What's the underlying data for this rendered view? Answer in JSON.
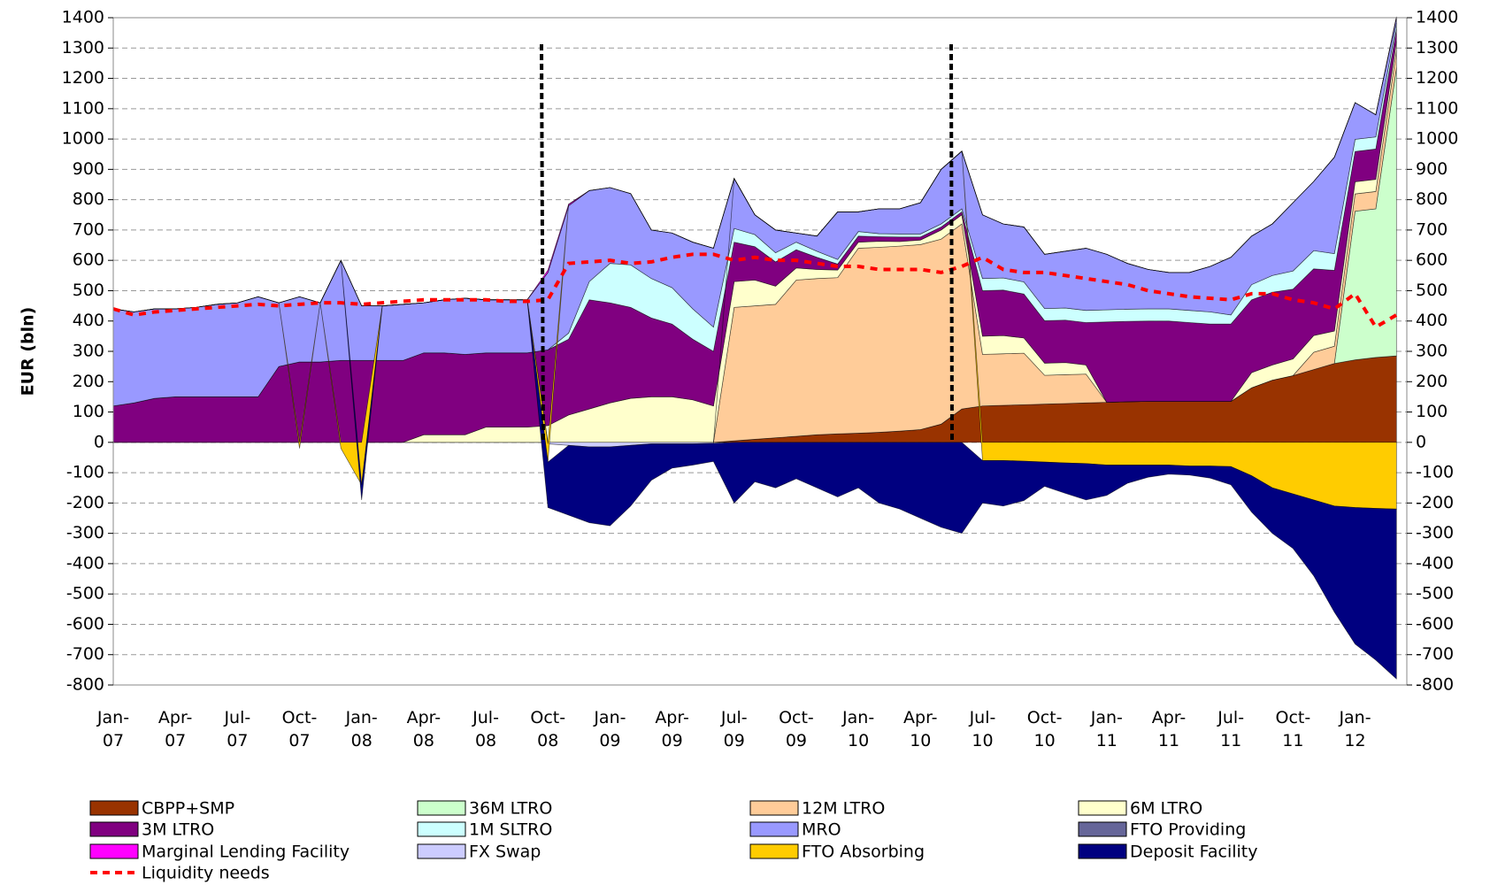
{
  "chart_data": {
    "type": "area",
    "y_label": "EUR (bln)",
    "categories": [
      "Jan-07",
      null,
      null,
      "Apr-07",
      null,
      null,
      "Jul-07",
      null,
      null,
      "Oct-07",
      null,
      null,
      "Jan-08",
      null,
      null,
      "Apr-08",
      null,
      null,
      "Jul-08",
      null,
      null,
      "Oct-08",
      null,
      null,
      "Jan-09",
      null,
      null,
      "Apr-09",
      null,
      null,
      "Jul-09",
      null,
      null,
      "Oct-09",
      null,
      null,
      "Jan-10",
      null,
      null,
      "Apr-10",
      null,
      null,
      "Jul-10",
      null,
      null,
      "Oct-10",
      null,
      null,
      "Jan-11",
      null,
      null,
      "Apr-11",
      null,
      null,
      "Jul-11",
      null,
      null,
      "Oct-11",
      null,
      null,
      "Jan-12",
      null,
      null
    ],
    "ylim": [
      -800,
      1400
    ],
    "yticks": [
      -800,
      -700,
      -600,
      -500,
      -400,
      -300,
      -200,
      -100,
      0,
      100,
      200,
      300,
      400,
      500,
      600,
      700,
      800,
      900,
      1000,
      1100,
      1200,
      1300,
      1400
    ],
    "grid": true,
    "stacked": true,
    "series": [
      {
        "name": "CBPP+SMP",
        "color": "#993300",
        "values": [
          0,
          0,
          0,
          0,
          0,
          0,
          0,
          0,
          0,
          0,
          0,
          0,
          0,
          0,
          0,
          0,
          0,
          0,
          0,
          0,
          0,
          0,
          0,
          0,
          0,
          0,
          0,
          0,
          0,
          0,
          5,
          10,
          15,
          20,
          25,
          28,
          30,
          33,
          37,
          42,
          60,
          110,
          120,
          122,
          124,
          126,
          128,
          130,
          132,
          134,
          135,
          135,
          135,
          135,
          135,
          180,
          205,
          220,
          240,
          260,
          272,
          280,
          285
        ]
      },
      {
        "name": "36M LTRO",
        "color": "#ccffcc",
        "values": [
          0,
          0,
          0,
          0,
          0,
          0,
          0,
          0,
          0,
          0,
          0,
          0,
          0,
          0,
          0,
          0,
          0,
          0,
          0,
          0,
          0,
          0,
          0,
          0,
          0,
          0,
          0,
          0,
          0,
          0,
          0,
          0,
          0,
          0,
          0,
          0,
          0,
          0,
          0,
          0,
          0,
          0,
          0,
          0,
          0,
          0,
          0,
          0,
          0,
          0,
          0,
          0,
          0,
          0,
          0,
          0,
          0,
          0,
          0,
          0,
          490,
          490,
          950
        ]
      },
      {
        "name": "12M LTRO",
        "color": "#ffcc99",
        "values": [
          0,
          0,
          0,
          0,
          0,
          0,
          0,
          0,
          0,
          0,
          0,
          0,
          0,
          0,
          0,
          0,
          0,
          0,
          0,
          0,
          0,
          0,
          0,
          0,
          0,
          0,
          0,
          0,
          0,
          0,
          440,
          440,
          440,
          515,
          515,
          515,
          610,
          610,
          610,
          610,
          610,
          610,
          170,
          170,
          170,
          95,
          95,
          95,
          0,
          0,
          0,
          0,
          0,
          0,
          0,
          0,
          0,
          0,
          57,
          57,
          57,
          57,
          57
        ]
      },
      {
        "name": "6M LTRO",
        "color": "#ffffcc",
        "values": [
          0,
          0,
          0,
          0,
          0,
          0,
          0,
          0,
          0,
          0,
          0,
          0,
          0,
          0,
          0,
          25,
          25,
          25,
          50,
          50,
          50,
          55,
          90,
          110,
          130,
          145,
          150,
          150,
          140,
          120,
          85,
          85,
          60,
          40,
          30,
          25,
          20,
          20,
          15,
          15,
          30,
          30,
          60,
          60,
          50,
          40,
          40,
          30,
          0,
          0,
          0,
          0,
          0,
          0,
          0,
          50,
          50,
          55,
          55,
          50,
          40,
          40,
          30
        ]
      },
      {
        "name": "3M LTRO",
        "color": "#800080",
        "values": [
          120,
          130,
          145,
          150,
          150,
          150,
          150,
          150,
          250,
          265,
          265,
          270,
          270,
          270,
          270,
          270,
          270,
          265,
          245,
          245,
          245,
          250,
          250,
          360,
          330,
          300,
          260,
          240,
          200,
          180,
          130,
          110,
          80,
          60,
          40,
          20,
          20,
          15,
          15,
          10,
          10,
          10,
          150,
          150,
          145,
          140,
          140,
          140,
          265,
          265,
          265,
          265,
          260,
          255,
          255,
          240,
          240,
          230,
          220,
          200,
          100,
          100,
          40
        ]
      },
      {
        "name": "1M SLTRO",
        "color": "#ccffff",
        "values": [
          0,
          0,
          0,
          0,
          0,
          0,
          0,
          0,
          0,
          0,
          0,
          0,
          0,
          0,
          0,
          0,
          0,
          0,
          0,
          0,
          0,
          0,
          20,
          60,
          130,
          140,
          130,
          120,
          100,
          80,
          45,
          40,
          30,
          25,
          20,
          15,
          15,
          10,
          10,
          10,
          10,
          10,
          40,
          40,
          40,
          40,
          40,
          40,
          40,
          40,
          40,
          40,
          40,
          40,
          30,
          50,
          55,
          60,
          60,
          55,
          40,
          40,
          20
        ]
      },
      {
        "name": "MRO",
        "color": "#9999ff",
        "values": [
          320,
          300,
          295,
          290,
          295,
          305,
          310,
          330,
          210,
          215,
          195,
          330,
          180,
          180,
          185,
          165,
          175,
          185,
          175,
          175,
          175,
          255,
          420,
          300,
          250,
          235,
          160,
          180,
          220,
          260,
          165,
          65,
          75,
          30,
          50,
          157,
          65,
          82,
          83,
          103,
          180,
          190,
          210,
          178,
          181,
          179,
          187,
          205,
          183,
          151,
          130,
          120,
          125,
          150,
          190,
          160,
          170,
          225,
          228,
          318,
          121,
          73,
          18
        ]
      },
      {
        "name": "FTO Providing",
        "color": "#666699",
        "values": [
          0,
          0,
          0,
          0,
          0,
          0,
          0,
          0,
          0,
          0,
          0,
          0,
          0,
          0,
          0,
          0,
          0,
          0,
          0,
          0,
          0,
          0,
          0,
          0,
          0,
          0,
          0,
          0,
          0,
          0,
          0,
          0,
          0,
          0,
          0,
          0,
          0,
          0,
          0,
          0,
          0,
          0,
          0,
          0,
          0,
          0,
          0,
          0,
          0,
          0,
          0,
          0,
          0,
          0,
          0,
          0,
          0,
          0,
          0,
          0,
          0,
          0,
          0
        ]
      },
      {
        "name": "Marginal Lending Facility",
        "color": "#ff00ff",
        "values": [
          0,
          0,
          0,
          0,
          0,
          0,
          0,
          0,
          0,
          0,
          0,
          0,
          0,
          0,
          0,
          0,
          0,
          0,
          0,
          0,
          0,
          8,
          5,
          0,
          0,
          0,
          0,
          0,
          0,
          0,
          0,
          0,
          0,
          0,
          0,
          0,
          0,
          0,
          0,
          0,
          0,
          0,
          0,
          0,
          0,
          0,
          0,
          0,
          0,
          0,
          0,
          0,
          0,
          0,
          0,
          0,
          0,
          0,
          0,
          0,
          0,
          0,
          3
        ]
      },
      {
        "name": "FX Swap",
        "color": "#ccccff",
        "values": [
          0,
          0,
          0,
          0,
          0,
          0,
          0,
          0,
          0,
          0,
          0,
          0,
          0,
          0,
          0,
          0,
          0,
          0,
          0,
          0,
          0,
          -5,
          -10,
          -15,
          -15,
          -10,
          -5,
          -5,
          -5,
          -3,
          0,
          0,
          0,
          0,
          0,
          0,
          0,
          0,
          0,
          0,
          0,
          0,
          0,
          0,
          0,
          0,
          0,
          0,
          0,
          0,
          0,
          0,
          0,
          0,
          0,
          0,
          0,
          0,
          0,
          0,
          0,
          0,
          0
        ]
      },
      {
        "name": "FTO Absorbing",
        "color": "#ffcc00",
        "values": [
          0,
          0,
          0,
          0,
          0,
          0,
          0,
          0,
          0,
          -20,
          0,
          -20,
          -140,
          0,
          0,
          0,
          0,
          0,
          0,
          0,
          0,
          -60,
          0,
          0,
          0,
          0,
          0,
          0,
          0,
          0,
          0,
          0,
          0,
          0,
          0,
          0,
          0,
          0,
          0,
          0,
          0,
          0,
          -60,
          -60,
          -62,
          -65,
          -68,
          -70,
          -75,
          -75,
          -75,
          -75,
          -78,
          -78,
          -80,
          -110,
          -150,
          -170,
          -190,
          -210,
          -215,
          -218,
          -220
        ]
      },
      {
        "name": "Deposit Facility",
        "color": "#000080",
        "values": [
          0,
          0,
          0,
          0,
          0,
          0,
          0,
          0,
          0,
          0,
          0,
          0,
          -50,
          0,
          0,
          0,
          0,
          0,
          0,
          0,
          0,
          -150,
          -230,
          -250,
          -260,
          -200,
          -120,
          -80,
          -70,
          -60,
          -200,
          -130,
          -150,
          -120,
          -150,
          -180,
          -150,
          -200,
          -220,
          -250,
          -280,
          -300,
          -140,
          -150,
          -130,
          -80,
          -100,
          -120,
          -100,
          -60,
          -40,
          -30,
          -30,
          -40,
          -60,
          -120,
          -150,
          -180,
          -250,
          -350,
          -450,
          -500,
          -560
        ]
      },
      {
        "name": "Liquidity needs",
        "type": "line",
        "color": "#ff0000",
        "values": [
          440,
          420,
          430,
          435,
          440,
          445,
          450,
          455,
          450,
          455,
          460,
          460,
          455,
          460,
          465,
          470,
          470,
          470,
          470,
          465,
          465,
          470,
          590,
          595,
          600,
          590,
          595,
          610,
          620,
          620,
          600,
          610,
          600,
          600,
          590,
          580,
          580,
          570,
          570,
          570,
          560,
          580,
          610,
          570,
          560,
          560,
          550,
          540,
          530,
          520,
          500,
          490,
          480,
          475,
          470,
          490,
          490,
          470,
          460,
          440,
          490,
          380,
          420
        ]
      }
    ]
  }
}
